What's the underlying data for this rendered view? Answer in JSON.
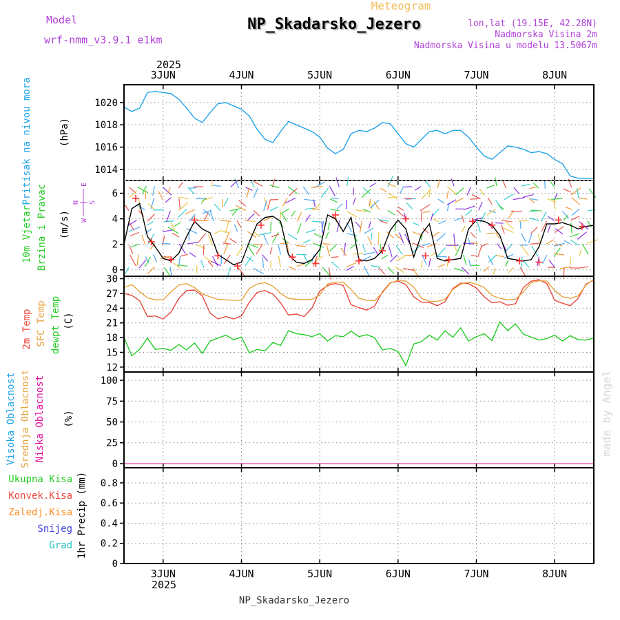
{
  "header": {
    "model_label": "Model",
    "model_name": "wrf-nmm_v3.9.1 e1km",
    "product": "Meteogram",
    "station": "NP_Skadarsko_Jezero",
    "coords": "lon,lat (19.15E, 42.28N)",
    "elevation": "Nadmorska Visina 2m",
    "model_elevation": "Nadmorska Visina u modelu 13.5067m",
    "watermark": "made by Angel",
    "footer_station": "NP_Skadarsko_Jezero"
  },
  "colors": {
    "pressure": "#1fa3e8",
    "wind_speed": "#000000",
    "gust": "#ff3030",
    "temp2m": "#e8463c",
    "sfc_temp": "#e8a23c",
    "dewpt": "#22cc22",
    "high_cloud": "#1fa3e8",
    "mid_cloud": "#e8a23c",
    "low_cloud": "#e0109a",
    "rain_total": "#22cc22",
    "rain_conv": "#e8463c",
    "rain_frozen": "#ff8a1c",
    "snow": "#4040e0",
    "hail": "#20c0c0",
    "model_text": "#b040d8",
    "grid": "#8a8a8a"
  },
  "chart_data": [
    {
      "type": "line",
      "panel": "pressure",
      "ylabel": [
        "Pritisak na nivou mora",
        "(hPa)"
      ],
      "yticks": [
        1014,
        1016,
        1018,
        1020
      ],
      "ylim": [
        1013.0,
        1021.6
      ],
      "x_unit": "days since 2025-06-02 12:00",
      "xlim": [
        0,
        6
      ],
      "xtick_labels": [
        "3JUN",
        "4JUN",
        "5JUN",
        "6JUN",
        "7JUN",
        "8JUN"
      ],
      "xticks": [
        0.5,
        1.5,
        2.5,
        3.5,
        4.5,
        5.5
      ],
      "year_label": "2025",
      "series": [
        {
          "name": "sea level pressure",
          "x": [
            0,
            0.1,
            0.2,
            0.3,
            0.4,
            0.5,
            0.6,
            0.7,
            0.8,
            0.9,
            1.0,
            1.1,
            1.2,
            1.3,
            1.4,
            1.5,
            1.6,
            1.7,
            1.8,
            1.9,
            2.0,
            2.1,
            2.2,
            2.3,
            2.4,
            2.5,
            2.6,
            2.7,
            2.8,
            2.9,
            3.0,
            3.1,
            3.2,
            3.3,
            3.4,
            3.5,
            3.6,
            3.7,
            3.8,
            3.9,
            4.0,
            4.1,
            4.2,
            4.3,
            4.4,
            4.5,
            4.6,
            4.7,
            4.8,
            4.9,
            5.0,
            5.1,
            5.2,
            5.3,
            5.4,
            5.5,
            5.6,
            5.7,
            5.8,
            5.9,
            6.0
          ],
          "values": [
            1019.6,
            1019.2,
            1019.5,
            1020.9,
            1021.0,
            1020.9,
            1020.8,
            1020.3,
            1019.5,
            1018.6,
            1018.2,
            1019.1,
            1019.9,
            1020.0,
            1019.7,
            1019.4,
            1018.8,
            1017.6,
            1016.7,
            1016.4,
            1017.4,
            1018.3,
            1018.0,
            1017.7,
            1017.4,
            1016.9,
            1015.9,
            1015.4,
            1015.8,
            1017.2,
            1017.5,
            1017.4,
            1017.7,
            1018.2,
            1018.1,
            1017.2,
            1016.3,
            1016.0,
            1016.7,
            1017.4,
            1017.5,
            1017.2,
            1017.5,
            1017.5,
            1016.9,
            1016.0,
            1015.2,
            1014.9,
            1015.5,
            1016.1,
            1016.0,
            1015.8,
            1015.5,
            1015.6,
            1015.4,
            1014.9,
            1014.5,
            1013.4,
            1013.2,
            1013.2,
            1013.2
          ]
        }
      ]
    },
    {
      "type": "line",
      "panel": "wind",
      "ylabel": [
        "10m Vjetar",
        "Brzina i Pravac",
        "(m/s)"
      ],
      "compass": {
        "n": "N",
        "w": "W",
        "e": "E",
        "s": "S"
      },
      "yticks": [
        0,
        2,
        4,
        6
      ],
      "ylim": [
        -0.5,
        7.0
      ],
      "xlim": [
        0,
        6
      ],
      "series": [
        {
          "name": "wind speed",
          "x": [
            0,
            0.1,
            0.2,
            0.3,
            0.4,
            0.5,
            0.6,
            0.7,
            0.8,
            0.9,
            1.0,
            1.1,
            1.2,
            1.3,
            1.4,
            1.5,
            1.6,
            1.7,
            1.8,
            1.9,
            2.0,
            2.1,
            2.2,
            2.3,
            2.4,
            2.5,
            2.6,
            2.7,
            2.8,
            2.9,
            3.0,
            3.1,
            3.2,
            3.3,
            3.4,
            3.5,
            3.6,
            3.7,
            3.8,
            3.9,
            4.0,
            4.1,
            4.2,
            4.3,
            4.4,
            4.5,
            4.6,
            4.7,
            4.8,
            4.9,
            5.0,
            5.1,
            5.2,
            5.3,
            5.4,
            5.5,
            5.6,
            5.7,
            5.8,
            5.9,
            6.0
          ],
          "values": [
            2.0,
            4.8,
            5.2,
            2.6,
            1.8,
            0.9,
            0.7,
            1.3,
            2.6,
            3.8,
            3.2,
            2.9,
            1.2,
            0.8,
            0.4,
            0.6,
            2.2,
            3.6,
            4.1,
            4.2,
            3.8,
            1.2,
            0.6,
            0.5,
            0.8,
            1.6,
            4.3,
            4.0,
            3.0,
            4.1,
            0.8,
            0.7,
            0.9,
            1.5,
            3.1,
            3.9,
            3.2,
            1.0,
            2.8,
            3.6,
            0.9,
            0.7,
            0.8,
            0.9,
            3.2,
            3.9,
            3.8,
            3.5,
            2.7,
            0.9,
            0.8,
            0.7,
            0.8,
            1.8,
            3.6,
            3.6,
            3.7,
            3.5,
            3.2,
            3.4,
            3.5
          ]
        },
        {
          "name": "gust",
          "x": [
            0.15,
            0.35,
            0.6,
            0.9,
            1.2,
            1.45,
            1.75,
            2.15,
            2.45,
            2.7,
            3.0,
            3.3,
            3.6,
            3.85,
            4.15,
            4.45,
            4.7,
            5.05,
            5.3,
            5.55,
            5.85
          ],
          "values": [
            5.6,
            2.2,
            0.8,
            3.9,
            1.1,
            0.3,
            3.5,
            1.0,
            0.5,
            4.3,
            0.7,
            1.5,
            4.0,
            1.1,
            0.8,
            3.8,
            3.5,
            0.7,
            0.6,
            3.9,
            3.4
          ]
        }
      ]
    },
    {
      "type": "line",
      "panel": "temperature",
      "ylabel": [
        "2m Temp",
        "SFC Temp",
        "dewpt Temp",
        "(C)"
      ],
      "yticks": [
        12,
        15,
        18,
        21,
        24,
        27,
        30
      ],
      "ylim": [
        11.0,
        30.5
      ],
      "xlim": [
        0,
        6
      ],
      "series": [
        {
          "name": "2m Temp",
          "x": [
            0,
            0.1,
            0.2,
            0.3,
            0.4,
            0.5,
            0.6,
            0.7,
            0.8,
            0.9,
            1.0,
            1.1,
            1.2,
            1.3,
            1.4,
            1.5,
            1.6,
            1.7,
            1.8,
            1.9,
            2.0,
            2.1,
            2.2,
            2.3,
            2.4,
            2.5,
            2.6,
            2.7,
            2.8,
            2.9,
            3.0,
            3.1,
            3.2,
            3.3,
            3.4,
            3.5,
            3.6,
            3.7,
            3.8,
            3.9,
            4.0,
            4.1,
            4.2,
            4.3,
            4.4,
            4.5,
            4.6,
            4.7,
            4.8,
            4.9,
            5.0,
            5.1,
            5.2,
            5.3,
            5.4,
            5.5,
            5.6,
            5.7,
            5.8,
            5.9,
            6.0
          ],
          "values": [
            27.0,
            26.6,
            25.5,
            22.3,
            22.4,
            21.8,
            23.2,
            26.0,
            27.6,
            27.7,
            26.5,
            23.0,
            21.8,
            22.3,
            21.8,
            22.4,
            25.2,
            27.2,
            27.6,
            26.9,
            25.1,
            22.6,
            22.8,
            22.3,
            24.0,
            27.5,
            28.6,
            29.0,
            28.6,
            24.7,
            24.1,
            23.6,
            24.4,
            27.3,
            29.2,
            29.5,
            28.8,
            26.3,
            25.2,
            25.2,
            24.5,
            25.3,
            28.0,
            29.1,
            29.0,
            28.1,
            26.3,
            25.1,
            25.3,
            24.6,
            24.9,
            28.2,
            29.5,
            29.8,
            29.0,
            25.6,
            25.0,
            24.5,
            26.0,
            28.9,
            29.7
          ]
        },
        {
          "name": "SFC Temp",
          "x": [
            0,
            0.1,
            0.2,
            0.3,
            0.4,
            0.5,
            0.6,
            0.7,
            0.8,
            0.9,
            1.0,
            1.1,
            1.2,
            1.3,
            1.4,
            1.5,
            1.6,
            1.7,
            1.8,
            1.9,
            2.0,
            2.1,
            2.2,
            2.3,
            2.4,
            2.5,
            2.6,
            2.7,
            2.8,
            2.9,
            3.0,
            3.1,
            3.2,
            3.3,
            3.4,
            3.5,
            3.6,
            3.7,
            3.8,
            3.9,
            4.0,
            4.1,
            4.2,
            4.3,
            4.4,
            4.5,
            4.6,
            4.7,
            4.8,
            4.9,
            5.0,
            5.1,
            5.2,
            5.3,
            5.4,
            5.5,
            5.6,
            5.7,
            5.8,
            5.9,
            6.0
          ],
          "values": [
            28.2,
            28.8,
            27.4,
            26.1,
            25.7,
            25.7,
            27.3,
            28.7,
            29.0,
            28.2,
            26.9,
            26.3,
            25.8,
            25.7,
            25.6,
            25.6,
            28.0,
            28.9,
            29.2,
            28.5,
            27.0,
            26.0,
            25.8,
            25.7,
            25.8,
            26.7,
            28.9,
            29.3,
            29.3,
            27.8,
            26.0,
            25.6,
            25.5,
            27.1,
            29.1,
            29.7,
            29.5,
            28.3,
            26.0,
            25.4,
            25.4,
            25.8,
            27.8,
            28.9,
            29.3,
            28.9,
            28.2,
            26.6,
            26.0,
            25.7,
            25.8,
            27.3,
            29.2,
            29.6,
            29.5,
            27.6,
            26.3,
            26.0,
            26.5,
            28.7,
            29.9
          ]
        },
        {
          "name": "dewpt Temp",
          "x": [
            0,
            0.1,
            0.2,
            0.3,
            0.4,
            0.5,
            0.6,
            0.7,
            0.8,
            0.9,
            1.0,
            1.1,
            1.2,
            1.3,
            1.4,
            1.5,
            1.6,
            1.7,
            1.8,
            1.9,
            2.0,
            2.1,
            2.2,
            2.3,
            2.4,
            2.5,
            2.6,
            2.7,
            2.8,
            2.9,
            3.0,
            3.1,
            3.2,
            3.3,
            3.4,
            3.5,
            3.6,
            3.7,
            3.8,
            3.9,
            4.0,
            4.1,
            4.2,
            4.3,
            4.4,
            4.5,
            4.6,
            4.7,
            4.8,
            4.9,
            5.0,
            5.1,
            5.2,
            5.3,
            5.4,
            5.5,
            5.6,
            5.7,
            5.8,
            5.9,
            6.0
          ],
          "values": [
            18.0,
            14.3,
            15.6,
            17.9,
            15.6,
            15.8,
            15.4,
            16.6,
            15.5,
            16.9,
            14.8,
            17.3,
            17.9,
            18.5,
            17.6,
            18.1,
            14.9,
            15.6,
            15.3,
            17.0,
            16.4,
            19.4,
            18.8,
            18.6,
            18.2,
            18.8,
            17.3,
            18.4,
            18.2,
            19.3,
            18.2,
            18.6,
            18.0,
            15.5,
            15.8,
            15.2,
            12.3,
            16.7,
            17.2,
            18.5,
            17.5,
            19.4,
            18.1,
            20.0,
            17.3,
            18.2,
            18.8,
            17.4,
            21.2,
            19.4,
            20.8,
            18.7,
            18.1,
            17.5,
            17.8,
            18.5,
            17.3,
            18.4,
            17.6,
            17.5,
            17.9
          ]
        }
      ]
    },
    {
      "type": "line",
      "panel": "cloud",
      "ylabel": [
        "Visoka Oblacnost",
        "Srednja Oblacnost",
        "Niska Oblacnost",
        "(%)"
      ],
      "yticks": [
        0,
        25,
        50,
        75,
        100
      ],
      "ylim": [
        -5,
        110
      ],
      "xlim": [
        0,
        6
      ],
      "series": [
        {
          "name": "Visoka Oblacnost",
          "x": [
            0,
            6
          ],
          "values": [
            0,
            0
          ]
        },
        {
          "name": "Srednja Oblacnost",
          "x": [
            0,
            6
          ],
          "values": [
            0,
            0
          ]
        },
        {
          "name": "Niska Oblacnost",
          "x": [
            0,
            6
          ],
          "values": [
            0,
            0
          ]
        }
      ]
    },
    {
      "type": "line",
      "panel": "precip",
      "ylabel": [
        "1hr Precip (mm)"
      ],
      "legend": [
        "Ukupna Kisa",
        "Konvek.Kisa",
        "Zaledj.Kisa",
        "Snijeg",
        "Grad"
      ],
      "yticks": [
        0,
        0.2,
        0.4,
        0.6,
        0.8
      ],
      "ytick_labels": [
        "0",
        "0.2",
        "0.4",
        "0.6",
        "0.8"
      ],
      "ylim": [
        0,
        0.95
      ],
      "xlim": [
        0,
        6
      ],
      "xtick_labels": [
        "3JUN",
        "4JUN",
        "5JUN",
        "6JUN",
        "7JUN",
        "8JUN"
      ],
      "xticks": [
        0.5,
        1.5,
        2.5,
        3.5,
        4.5,
        5.5
      ],
      "year_label": "2025",
      "series": [
        {
          "name": "Ukupna Kisa",
          "x": [
            0,
            6
          ],
          "values": [
            0,
            0
          ]
        }
      ]
    }
  ]
}
